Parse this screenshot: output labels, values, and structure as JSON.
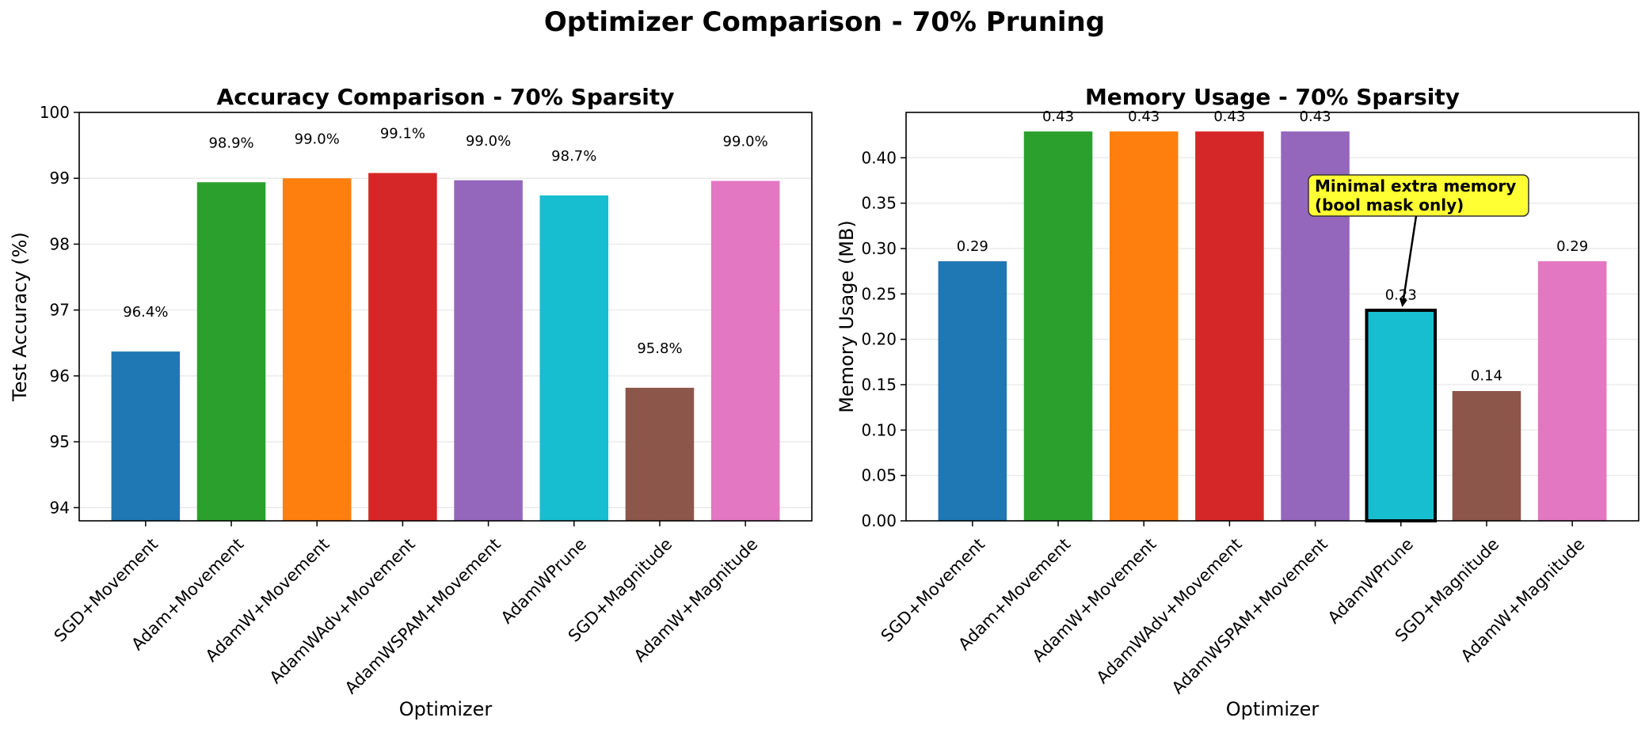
{
  "suptitle": "Optimizer Comparison - 70% Pruning",
  "colors": [
    "#1f77b4",
    "#2ca02c",
    "#ff7f0e",
    "#d62728",
    "#9467bd",
    "#17becf",
    "#8c564b",
    "#e377c2"
  ],
  "chart_data": [
    {
      "type": "bar",
      "title": "Accuracy Comparison - 70% Sparsity",
      "xlabel": "Optimizer",
      "ylabel": "Test Accuracy (%)",
      "categories": [
        "SGD+Movement",
        "Adam+Movement",
        "AdamW+Movement",
        "AdamWAdv+Movement",
        "AdamWSPAM+Movement",
        "AdamWPrune",
        "SGD+Magnitude",
        "AdamW+Magnitude"
      ],
      "values": [
        96.37,
        98.94,
        99.0,
        99.08,
        98.97,
        98.74,
        95.82,
        98.96
      ],
      "labels": [
        "96.4%",
        "98.9%",
        "99.0%",
        "99.1%",
        "99.0%",
        "98.7%",
        "95.8%",
        "99.0%"
      ],
      "ylim": [
        93.8,
        100
      ],
      "yticks": [
        94,
        95,
        96,
        97,
        98,
        99,
        100
      ],
      "ytick_labels": [
        "94",
        "95",
        "96",
        "97",
        "98",
        "99",
        "100"
      ],
      "grid": "y"
    },
    {
      "type": "bar",
      "title": "Memory Usage - 70% Sparsity",
      "xlabel": "Optimizer",
      "ylabel": "Memory Usage (MB)",
      "categories": [
        "SGD+Movement",
        "Adam+Movement",
        "AdamW+Movement",
        "AdamWAdv+Movement",
        "AdamWSPAM+Movement",
        "AdamWPrune",
        "SGD+Magnitude",
        "AdamW+Magnitude"
      ],
      "values": [
        0.286,
        0.429,
        0.429,
        0.429,
        0.429,
        0.232,
        0.143,
        0.286
      ],
      "labels": [
        "0.29",
        "0.43",
        "0.43",
        "0.43",
        "0.43",
        "0.23",
        "0.14",
        "0.29"
      ],
      "ylim": [
        0,
        0.45
      ],
      "yticks": [
        0,
        0.05,
        0.1,
        0.15,
        0.2,
        0.25,
        0.3,
        0.35,
        0.4
      ],
      "ytick_labels": [
        "0.00",
        "0.05",
        "0.10",
        "0.15",
        "0.20",
        "0.25",
        "0.30",
        "0.35",
        "0.40"
      ],
      "grid": "y",
      "highlight_index": 5,
      "annotation": {
        "lines": [
          "Minimal extra memory",
          "(bool mask only)"
        ],
        "target_index": 5,
        "box_color": "#ffff33"
      }
    }
  ]
}
